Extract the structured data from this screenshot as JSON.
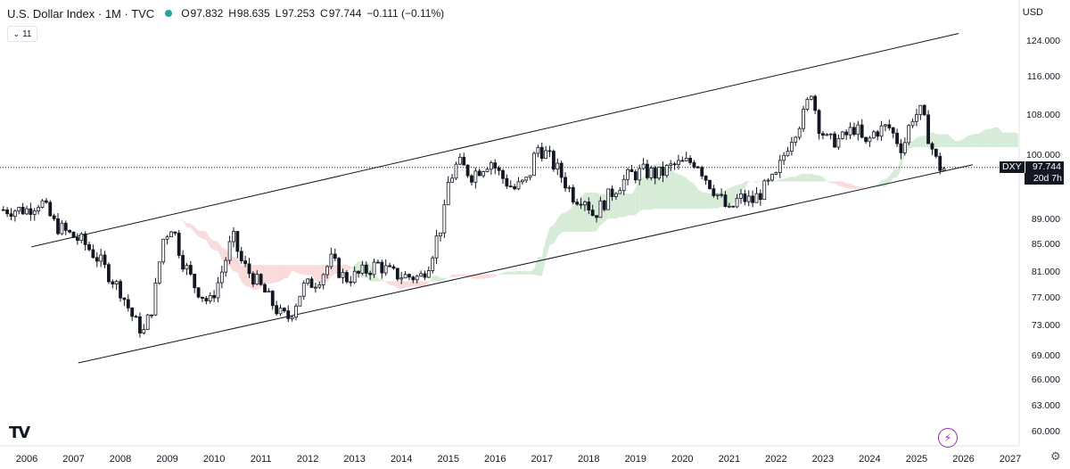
{
  "header": {
    "title": "U.S. Dollar Index · 1M · TVC",
    "status_color": "#26a69a",
    "open_label": "O",
    "open": "97.832",
    "high_label": "H",
    "high": "98.635",
    "low_label": "L",
    "low": "97.253",
    "close_label": "C",
    "close": "97.744",
    "change": "−0.111 (−0.11%)"
  },
  "currency": "USD",
  "indicator_toggle": {
    "icon": "chevron-down-icon",
    "count": "11"
  },
  "price_badge": {
    "symbol": "DXY",
    "value": "97.744",
    "countdown": "20d 7h"
  },
  "icons": {
    "logo": "tradingview-logo-icon",
    "lightning": "lightning-icon",
    "settings": "gear-icon"
  },
  "colors": {
    "up": "#ffffff",
    "down": "#131722",
    "cloud_bear": "#f8cfcf",
    "cloud_bull": "#c8e6c9"
  },
  "chart_data": {
    "type": "candlestick",
    "x_ticks": [
      "2006",
      "2007",
      "2008",
      "2009",
      "2010",
      "2011",
      "2012",
      "2013",
      "2014",
      "2015",
      "2016",
      "2017",
      "2018",
      "2019",
      "2020",
      "2021",
      "2022",
      "2023",
      "2024",
      "2025",
      "2026",
      "2027"
    ],
    "y_ticks": [
      124.0,
      116.0,
      108.0,
      100.0,
      89.0,
      85.0,
      81.0,
      77.0,
      73.0,
      69.0,
      66.0,
      63.0,
      60.0
    ],
    "last_price": 97.744,
    "yearly_path": [
      [
        2006.0,
        90.5
      ],
      [
        2006.3,
        92.0
      ],
      [
        2006.6,
        88.0
      ],
      [
        2006.9,
        86.5
      ],
      [
        2007.2,
        85.2
      ],
      [
        2007.5,
        83.0
      ],
      [
        2007.8,
        80.0
      ],
      [
        2008.0,
        78.0
      ],
      [
        2008.3,
        73.5
      ],
      [
        2008.5,
        72.0
      ],
      [
        2008.7,
        76.0
      ],
      [
        2008.9,
        85.5
      ],
      [
        2009.1,
        88.0
      ],
      [
        2009.3,
        83.0
      ],
      [
        2009.6,
        78.5
      ],
      [
        2009.9,
        76.0
      ],
      [
        2010.1,
        79.5
      ],
      [
        2010.4,
        86.0
      ],
      [
        2010.6,
        82.0
      ],
      [
        2010.9,
        79.5
      ],
      [
        2011.2,
        76.5
      ],
      [
        2011.4,
        74.5
      ],
      [
        2011.6,
        74.0
      ],
      [
        2011.9,
        78.5
      ],
      [
        2012.2,
        79.5
      ],
      [
        2012.5,
        82.5
      ],
      [
        2012.8,
        79.8
      ],
      [
        2013.1,
        80.5
      ],
      [
        2013.5,
        82.0
      ],
      [
        2013.8,
        80.5
      ],
      [
        2014.1,
        80.2
      ],
      [
        2014.4,
        80.0
      ],
      [
        2014.6,
        82.5
      ],
      [
        2014.9,
        89.0
      ],
      [
        2015.0,
        95.0
      ],
      [
        2015.2,
        98.5
      ],
      [
        2015.5,
        96.5
      ],
      [
        2015.9,
        99.0
      ],
      [
        2016.1,
        96.5
      ],
      [
        2016.4,
        94.0
      ],
      [
        2016.7,
        95.5
      ],
      [
        2016.9,
        101.5
      ],
      [
        2017.1,
        100.0
      ],
      [
        2017.4,
        96.5
      ],
      [
        2017.7,
        92.5
      ],
      [
        2017.9,
        92.8
      ],
      [
        2018.1,
        89.5
      ],
      [
        2018.3,
        91.5
      ],
      [
        2018.6,
        94.5
      ],
      [
        2018.9,
        96.5
      ],
      [
        2019.2,
        97.0
      ],
      [
        2019.5,
        96.5
      ],
      [
        2019.8,
        98.0
      ],
      [
        2020.1,
        98.5
      ],
      [
        2020.3,
        99.0
      ],
      [
        2020.5,
        96.0
      ],
      [
        2020.8,
        92.5
      ],
      [
        2021.0,
        90.0
      ],
      [
        2021.2,
        92.5
      ],
      [
        2021.5,
        92.0
      ],
      [
        2021.8,
        94.5
      ],
      [
        2022.0,
        96.0
      ],
      [
        2022.3,
        103.0
      ],
      [
        2022.6,
        108.0
      ],
      [
        2022.75,
        113.0
      ],
      [
        2022.9,
        106.0
      ],
      [
        2023.1,
        102.5
      ],
      [
        2023.4,
        103.0
      ],
      [
        2023.7,
        105.5
      ],
      [
        2023.9,
        101.5
      ],
      [
        2024.1,
        104.5
      ],
      [
        2024.4,
        105.5
      ],
      [
        2024.7,
        101.0
      ],
      [
        2024.9,
        107.5
      ],
      [
        2025.1,
        108.5
      ],
      [
        2025.3,
        102.0
      ],
      [
        2025.45,
        98.0
      ],
      [
        2025.6,
        97.5
      ]
    ],
    "channel_upper": [
      [
        2006.1,
        84.5
      ],
      [
        2025.9,
        125.5
      ]
    ],
    "channel_lower": [
      [
        2007.1,
        68.0
      ],
      [
        2026.2,
        98.2
      ]
    ],
    "grid": false,
    "legend": "none"
  }
}
